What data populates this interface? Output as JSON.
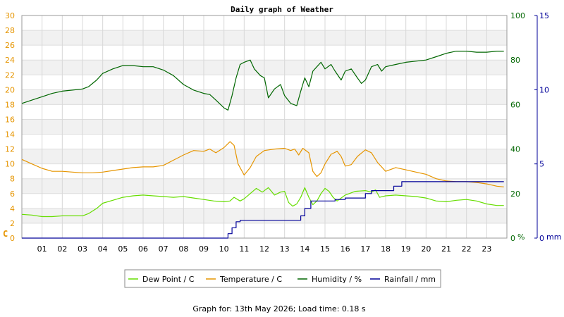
{
  "chart_data": {
    "type": "line",
    "title": "Daily graph of Weather",
    "footer": "Graph for: 13th May 2026; Load time: 0.18 s",
    "x_axis": {
      "range": [
        0,
        24
      ],
      "tick_labels": [
        "01",
        "02",
        "03",
        "04",
        "05",
        "06",
        "07",
        "08",
        "09",
        "10",
        "11",
        "12",
        "13",
        "14",
        "15",
        "16",
        "17",
        "18",
        "19",
        "20",
        "21",
        "22",
        "23"
      ]
    },
    "y_left": {
      "label": "C",
      "range": [
        0,
        30
      ],
      "step": 2,
      "color": "#e69500"
    },
    "y_right_humidity": {
      "label": "%",
      "range": [
        0,
        100
      ],
      "ticks": [
        0,
        20,
        40,
        60,
        80,
        100
      ],
      "color": "#006600"
    },
    "y_right_rain": {
      "label": "mm",
      "range": [
        0,
        15
      ],
      "ticks": [
        0,
        5,
        10,
        15
      ],
      "color": "#000099"
    },
    "grid": true,
    "legend_position": "bottom",
    "legend": [
      {
        "label": "Dew Point / C",
        "color": "#66dd00"
      },
      {
        "label": "Temperature / C",
        "color": "#e69500"
      },
      {
        "label": "Humidity / %",
        "color": "#006600"
      },
      {
        "label": "Rainfall / mm",
        "color": "#000099"
      }
    ],
    "series": [
      {
        "name": "Dew Point / C",
        "axis": "left",
        "color": "#66dd00",
        "points": [
          [
            0,
            3.2
          ],
          [
            0.5,
            3.1
          ],
          [
            1,
            2.9
          ],
          [
            1.5,
            2.9
          ],
          [
            2,
            3.0
          ],
          [
            2.5,
            3.0
          ],
          [
            3,
            3.0
          ],
          [
            3.3,
            3.3
          ],
          [
            3.7,
            4.0
          ],
          [
            4,
            4.7
          ],
          [
            4.5,
            5.1
          ],
          [
            5,
            5.5
          ],
          [
            5.5,
            5.7
          ],
          [
            6,
            5.8
          ],
          [
            6.5,
            5.7
          ],
          [
            7,
            5.6
          ],
          [
            7.5,
            5.5
          ],
          [
            8,
            5.6
          ],
          [
            8.5,
            5.4
          ],
          [
            9,
            5.2
          ],
          [
            9.5,
            5.0
          ],
          [
            10,
            4.9
          ],
          [
            10.3,
            5.0
          ],
          [
            10.5,
            5.5
          ],
          [
            10.8,
            5.0
          ],
          [
            11,
            5.3
          ],
          [
            11.3,
            6.0
          ],
          [
            11.6,
            6.7
          ],
          [
            11.9,
            6.2
          ],
          [
            12.2,
            6.8
          ],
          [
            12.5,
            5.8
          ],
          [
            12.8,
            6.2
          ],
          [
            13,
            6.3
          ],
          [
            13.2,
            4.8
          ],
          [
            13.4,
            4.3
          ],
          [
            13.6,
            4.6
          ],
          [
            13.8,
            5.5
          ],
          [
            14,
            6.8
          ],
          [
            14.2,
            5.5
          ],
          [
            14.4,
            4.5
          ],
          [
            14.6,
            5.0
          ],
          [
            14.8,
            6.0
          ],
          [
            15,
            6.7
          ],
          [
            15.2,
            6.3
          ],
          [
            15.4,
            5.5
          ],
          [
            15.6,
            5.0
          ],
          [
            16,
            5.8
          ],
          [
            16.5,
            6.3
          ],
          [
            17,
            6.4
          ],
          [
            17.3,
            6.2
          ],
          [
            17.5,
            6.5
          ],
          [
            17.7,
            5.5
          ],
          [
            18,
            5.7
          ],
          [
            18.5,
            5.8
          ],
          [
            19,
            5.7
          ],
          [
            19.5,
            5.6
          ],
          [
            20,
            5.4
          ],
          [
            20.5,
            5.0
          ],
          [
            21,
            4.9
          ],
          [
            21.5,
            5.1
          ],
          [
            22,
            5.2
          ],
          [
            22.5,
            5.0
          ],
          [
            23,
            4.6
          ],
          [
            23.5,
            4.4
          ],
          [
            23.85,
            4.4
          ]
        ]
      },
      {
        "name": "Temperature / C",
        "axis": "left",
        "color": "#e69500",
        "points": [
          [
            0,
            10.6
          ],
          [
            0.5,
            10.0
          ],
          [
            1,
            9.4
          ],
          [
            1.5,
            9.0
          ],
          [
            2,
            9.0
          ],
          [
            2.5,
            8.9
          ],
          [
            3,
            8.8
          ],
          [
            3.5,
            8.8
          ],
          [
            4,
            8.9
          ],
          [
            4.5,
            9.1
          ],
          [
            5,
            9.3
          ],
          [
            5.5,
            9.5
          ],
          [
            6,
            9.6
          ],
          [
            6.5,
            9.6
          ],
          [
            7,
            9.8
          ],
          [
            7.5,
            10.5
          ],
          [
            8,
            11.2
          ],
          [
            8.5,
            11.8
          ],
          [
            9,
            11.7
          ],
          [
            9.3,
            12.0
          ],
          [
            9.6,
            11.5
          ],
          [
            10,
            12.2
          ],
          [
            10.3,
            13.0
          ],
          [
            10.5,
            12.5
          ],
          [
            10.7,
            10.0
          ],
          [
            11,
            8.5
          ],
          [
            11.3,
            9.5
          ],
          [
            11.6,
            11.0
          ],
          [
            12,
            11.8
          ],
          [
            12.5,
            12.0
          ],
          [
            13,
            12.1
          ],
          [
            13.3,
            11.8
          ],
          [
            13.5,
            12.0
          ],
          [
            13.7,
            11.2
          ],
          [
            13.9,
            12.1
          ],
          [
            14.2,
            11.5
          ],
          [
            14.4,
            9.0
          ],
          [
            14.6,
            8.3
          ],
          [
            14.8,
            8.8
          ],
          [
            15,
            10.0
          ],
          [
            15.3,
            11.3
          ],
          [
            15.6,
            11.7
          ],
          [
            15.8,
            11.0
          ],
          [
            16,
            9.7
          ],
          [
            16.3,
            9.9
          ],
          [
            16.6,
            11.0
          ],
          [
            17,
            11.9
          ],
          [
            17.3,
            11.5
          ],
          [
            17.6,
            10.2
          ],
          [
            18,
            9.0
          ],
          [
            18.5,
            9.5
          ],
          [
            19,
            9.2
          ],
          [
            19.5,
            8.9
          ],
          [
            20,
            8.6
          ],
          [
            20.5,
            8.0
          ],
          [
            21,
            7.7
          ],
          [
            21.5,
            7.6
          ],
          [
            22,
            7.6
          ],
          [
            22.5,
            7.5
          ],
          [
            23,
            7.3
          ],
          [
            23.5,
            7.0
          ],
          [
            23.85,
            6.9
          ]
        ]
      },
      {
        "name": "Humidity / %",
        "axis": "right_humidity",
        "color": "#006600",
        "points": [
          [
            0,
            60.5
          ],
          [
            0.5,
            62.0
          ],
          [
            1,
            63.5
          ],
          [
            1.5,
            65.0
          ],
          [
            2,
            66.0
          ],
          [
            2.5,
            66.5
          ],
          [
            3,
            67.0
          ],
          [
            3.3,
            68.0
          ],
          [
            3.7,
            71.0
          ],
          [
            4,
            74.0
          ],
          [
            4.5,
            76.0
          ],
          [
            5,
            77.5
          ],
          [
            5.5,
            77.5
          ],
          [
            6,
            77.0
          ],
          [
            6.5,
            77.0
          ],
          [
            7,
            75.5
          ],
          [
            7.5,
            73.0
          ],
          [
            8,
            69.0
          ],
          [
            8.5,
            66.5
          ],
          [
            9,
            65.0
          ],
          [
            9.3,
            64.5
          ],
          [
            9.6,
            62.0
          ],
          [
            10,
            58.5
          ],
          [
            10.2,
            57.5
          ],
          [
            10.4,
            64.0
          ],
          [
            10.6,
            72.0
          ],
          [
            10.8,
            78.0
          ],
          [
            11,
            79.0
          ],
          [
            11.3,
            80.0
          ],
          [
            11.5,
            76.0
          ],
          [
            11.8,
            73.0
          ],
          [
            12,
            72.0
          ],
          [
            12.2,
            63.0
          ],
          [
            12.5,
            67.0
          ],
          [
            12.8,
            69.0
          ],
          [
            13,
            64.0
          ],
          [
            13.3,
            60.5
          ],
          [
            13.6,
            59.5
          ],
          [
            13.8,
            66.0
          ],
          [
            14,
            72.0
          ],
          [
            14.2,
            68.0
          ],
          [
            14.4,
            75.0
          ],
          [
            14.6,
            77.0
          ],
          [
            14.8,
            79.0
          ],
          [
            15,
            76.0
          ],
          [
            15.3,
            78.0
          ],
          [
            15.5,
            75.0
          ],
          [
            15.8,
            71.0
          ],
          [
            16,
            75.0
          ],
          [
            16.3,
            76.0
          ],
          [
            16.6,
            72.0
          ],
          [
            16.8,
            69.5
          ],
          [
            17,
            71.0
          ],
          [
            17.3,
            77.0
          ],
          [
            17.6,
            78.0
          ],
          [
            17.8,
            75.0
          ],
          [
            18,
            77.0
          ],
          [
            18.5,
            78.0
          ],
          [
            19,
            79.0
          ],
          [
            19.5,
            79.5
          ],
          [
            20,
            80.0
          ],
          [
            20.5,
            81.5
          ],
          [
            21,
            83.0
          ],
          [
            21.5,
            84.0
          ],
          [
            22,
            84.0
          ],
          [
            22.5,
            83.5
          ],
          [
            23,
            83.5
          ],
          [
            23.5,
            84.0
          ],
          [
            23.85,
            84.0
          ]
        ]
      },
      {
        "name": "Rainfall / mm",
        "axis": "right_rain",
        "color": "#000099",
        "points": [
          [
            0,
            0
          ],
          [
            10.0,
            0
          ],
          [
            10.2,
            0.3
          ],
          [
            10.4,
            0.7
          ],
          [
            10.6,
            1.1
          ],
          [
            10.8,
            1.2
          ],
          [
            11.5,
            1.2
          ],
          [
            12,
            1.2
          ],
          [
            12.5,
            1.2
          ],
          [
            13,
            1.2
          ],
          [
            13.5,
            1.2
          ],
          [
            13.8,
            1.5
          ],
          [
            14,
            2.0
          ],
          [
            14.3,
            2.5
          ],
          [
            14.6,
            2.5
          ],
          [
            15.5,
            2.6
          ],
          [
            16,
            2.7
          ],
          [
            16.6,
            2.7
          ],
          [
            17,
            3.0
          ],
          [
            17.3,
            3.2
          ],
          [
            17.8,
            3.2
          ],
          [
            18,
            3.2
          ],
          [
            18.4,
            3.5
          ],
          [
            18.8,
            3.8
          ],
          [
            19.5,
            3.8
          ],
          [
            20,
            3.8
          ],
          [
            21,
            3.8
          ],
          [
            22,
            3.8
          ],
          [
            23,
            3.8
          ],
          [
            23.85,
            3.8
          ]
        ]
      }
    ]
  }
}
